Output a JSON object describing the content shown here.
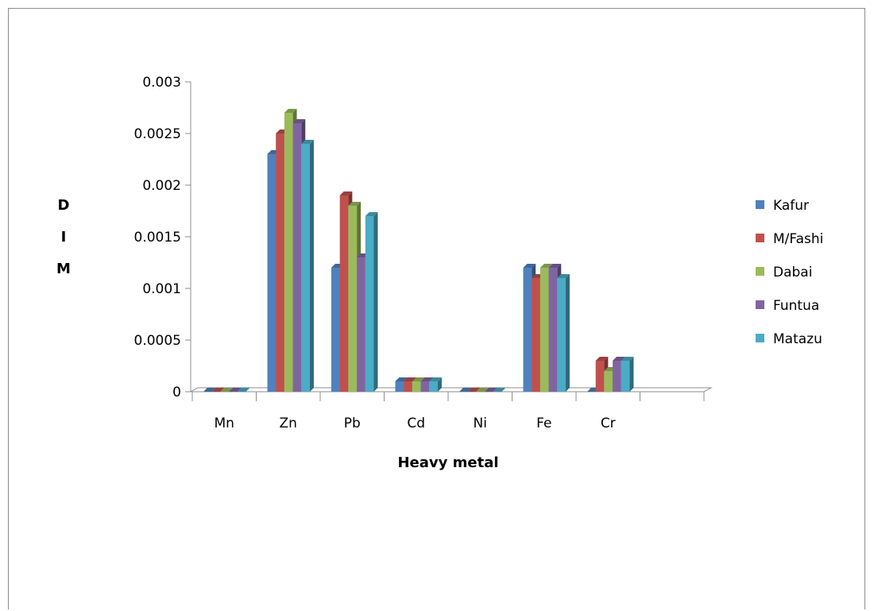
{
  "chart_data": {
    "type": "bar",
    "title": "",
    "xlabel": "Heavy metal",
    "ylabel": "DIM",
    "ylabel_letters": [
      "D",
      "I",
      "M"
    ],
    "categories": [
      "Mn",
      "Zn",
      "Pb",
      "Cd",
      "Ni",
      "Fe",
      "Cr"
    ],
    "yticks": [
      "0",
      "0.0005",
      "0.001",
      "0.0015",
      "0.002",
      "0.0025",
      "0.003"
    ],
    "ylim": [
      0,
      0.003
    ],
    "legend_position": "right",
    "grid": false,
    "series": [
      {
        "name": "Kafur",
        "color": "#4f81bd",
        "values": [
          0,
          0.0023,
          0.0012,
          0.0001,
          0,
          0.0012,
          0
        ]
      },
      {
        "name": "M/Fashi",
        "color": "#c0504d",
        "values": [
          0,
          0.0025,
          0.0019,
          0.0001,
          0,
          0.0011,
          0.0003
        ]
      },
      {
        "name": "Dabai",
        "color": "#9bbb59",
        "values": [
          0,
          0.0027,
          0.0018,
          0.0001,
          0,
          0.0012,
          0.0002
        ]
      },
      {
        "name": "Funtua",
        "color": "#8064a2",
        "values": [
          0,
          0.0026,
          0.0013,
          0.0001,
          0,
          0.0012,
          0.0003
        ]
      },
      {
        "name": "Matazu",
        "color": "#4bacc6",
        "values": [
          0,
          0.0024,
          0.0017,
          0.0001,
          0,
          0.0011,
          0.0003
        ]
      }
    ]
  }
}
